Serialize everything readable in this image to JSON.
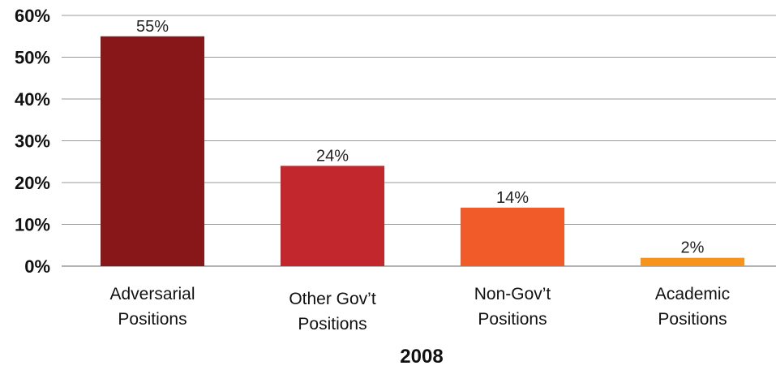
{
  "chart_data": {
    "type": "bar",
    "categories": [
      [
        "Adversarial",
        "Positions"
      ],
      [
        "Other Gov’t",
        "Positions"
      ],
      [
        "Non-Gov’t",
        "Positions"
      ],
      [
        "Academic",
        "Positions"
      ]
    ],
    "values": [
      55,
      24,
      14,
      2
    ],
    "value_labels": [
      "55%",
      "24%",
      "14%",
      "2%"
    ],
    "colors": [
      "#88171A",
      "#C1272D",
      "#F15A29",
      "#F7941D"
    ],
    "title": "",
    "xlabel": "2008",
    "ylabel": "",
    "ylim": [
      0,
      60
    ],
    "yticks": [
      0,
      10,
      20,
      30,
      40,
      50,
      60
    ],
    "ytick_labels": [
      "0%",
      "10%",
      "20%",
      "30%",
      "40%",
      "50%",
      "60%"
    ],
    "grid": true,
    "legend": "none"
  }
}
